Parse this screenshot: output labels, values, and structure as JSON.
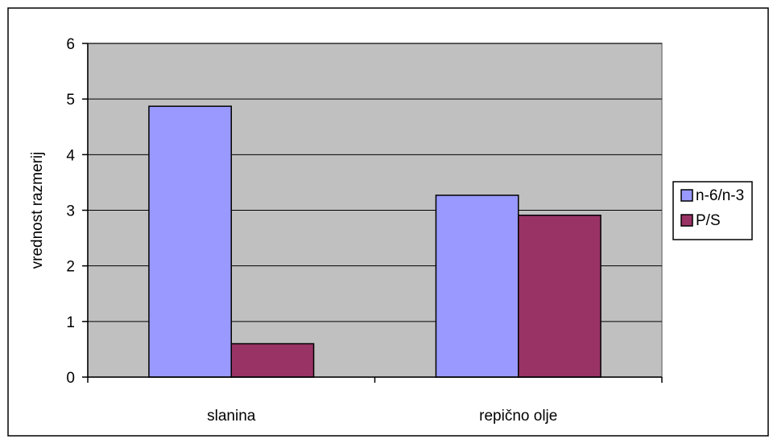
{
  "chart_data": {
    "type": "bar",
    "title": "",
    "xlabel": "",
    "ylabel": "vrednost razmerij",
    "categories": [
      "slanina",
      "repično olje"
    ],
    "series": [
      {
        "name": "n-6/n-3",
        "values": [
          4.87,
          3.27
        ],
        "color": "#9999ff"
      },
      {
        "name": "P/S",
        "values": [
          0.6,
          2.91
        ],
        "color": "#993366"
      }
    ],
    "ylim": [
      0,
      6
    ],
    "yticks": [
      "0",
      "1",
      "2",
      "3",
      "4",
      "5",
      "6"
    ],
    "grid": true,
    "legend": "right",
    "plot_background": "#c0c0c0"
  }
}
